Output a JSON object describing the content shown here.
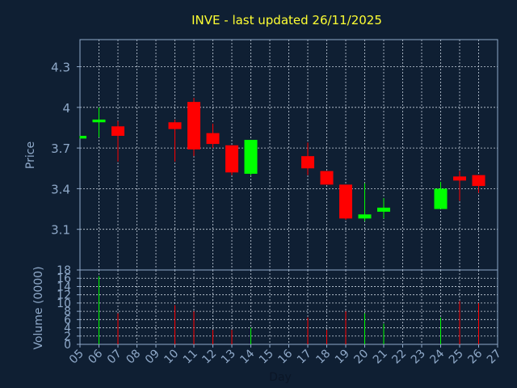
{
  "chart_data": {
    "type": "candlestick",
    "title": "INVE - last updated 26/11/2025",
    "xlabel": "Day",
    "ylabel": "Price",
    "volume_label": "Volume (0000)",
    "x_ticks": [
      "05",
      "06",
      "07",
      "08",
      "09",
      "10",
      "11",
      "12",
      "13",
      "14",
      "15",
      "16",
      "17",
      "18",
      "19",
      "20",
      "21",
      "22",
      "23",
      "24",
      "25",
      "26",
      "27"
    ],
    "price_ticks": [
      "3.1",
      "3.4",
      "3.7",
      "4",
      "4.3"
    ],
    "price_ylim": [
      2.8,
      4.5
    ],
    "volume_ticks": [
      "0",
      "2",
      "4",
      "6",
      "8",
      "10",
      "12",
      "14",
      "16",
      "18"
    ],
    "volume_ylim": [
      0,
      18
    ],
    "grid": true,
    "colors": {
      "background": "#0f1f33",
      "up": "#00ff00",
      "down": "#ff0000",
      "title": "#ffff33",
      "axis_text": "#8fa9c9",
      "grid": "#c8d2de"
    },
    "candles": [
      {
        "day": "05",
        "open": 3.77,
        "close": 3.79,
        "high": 3.79,
        "low": 3.77,
        "volume": 0
      },
      {
        "day": "06",
        "open": 3.89,
        "close": 3.91,
        "high": 4.0,
        "low": 3.78,
        "volume": 16.5
      },
      {
        "day": "07",
        "open": 3.86,
        "close": 3.79,
        "high": 3.9,
        "low": 3.6,
        "volume": 7.5
      },
      {
        "day": "10",
        "open": 3.89,
        "close": 3.84,
        "high": 3.91,
        "low": 3.6,
        "volume": 9.5
      },
      {
        "day": "11",
        "open": 4.04,
        "close": 3.69,
        "high": 4.07,
        "low": 3.64,
        "volume": 8.0
      },
      {
        "day": "12",
        "open": 3.81,
        "close": 3.73,
        "high": 3.88,
        "low": 3.7,
        "volume": 3.5
      },
      {
        "day": "13",
        "open": 3.72,
        "close": 3.52,
        "high": 3.72,
        "low": 3.5,
        "volume": 3.5
      },
      {
        "day": "14",
        "open": 3.51,
        "close": 3.76,
        "high": 3.76,
        "low": 3.5,
        "volume": 4.0
      },
      {
        "day": "17",
        "open": 3.64,
        "close": 3.55,
        "high": 3.74,
        "low": 3.5,
        "volume": 6.5
      },
      {
        "day": "18",
        "open": 3.53,
        "close": 3.43,
        "high": 3.53,
        "low": 3.43,
        "volume": 3.5
      },
      {
        "day": "19",
        "open": 3.43,
        "close": 3.18,
        "high": 3.43,
        "low": 3.17,
        "volume": 8.0
      },
      {
        "day": "20",
        "open": 3.18,
        "close": 3.21,
        "high": 3.44,
        "low": 3.16,
        "volume": 7.5
      },
      {
        "day": "21",
        "open": 3.23,
        "close": 3.26,
        "high": 3.33,
        "low": 3.18,
        "volume": 5.0
      },
      {
        "day": "24",
        "open": 3.25,
        "close": 3.4,
        "high": 3.45,
        "low": 3.25,
        "volume": 6.5
      },
      {
        "day": "25",
        "open": 3.49,
        "close": 3.46,
        "high": 3.53,
        "low": 3.31,
        "volume": 10.5
      },
      {
        "day": "26",
        "open": 3.5,
        "close": 3.42,
        "high": 3.5,
        "low": 3.37,
        "volume": 10.0
      }
    ]
  }
}
